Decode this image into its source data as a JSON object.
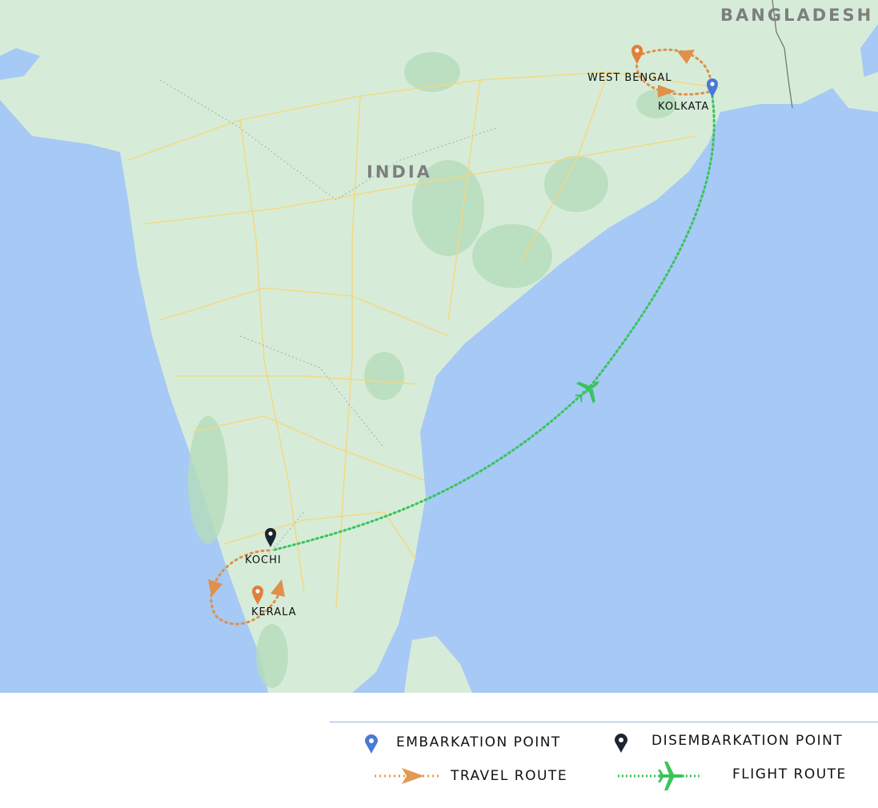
{
  "map": {
    "country_labels": [
      "INDIA",
      "BANGLADESH"
    ],
    "places": [
      {
        "name": "WEST BENGAL",
        "marker": "travel-stop"
      },
      {
        "name": "KOLKATA",
        "marker": "embarkation"
      },
      {
        "name": "KOCHI",
        "marker": "disembarkation"
      },
      {
        "name": "KERALA",
        "marker": "travel-stop"
      }
    ],
    "colors": {
      "ocean": "#a6c9f6",
      "land": "#d6ecd8",
      "embarkation": "#4a78d8",
      "disembarkation": "#1c2530",
      "travel_route": "#e0904a",
      "flight_route": "#39c45a"
    }
  },
  "legend": {
    "embarkation": "EMBARKATION POINT",
    "disembarkation": "DISEMBARKATION POINT",
    "travel_route": "TRAVEL ROUTE",
    "flight_route": "FLIGHT ROUTE"
  }
}
